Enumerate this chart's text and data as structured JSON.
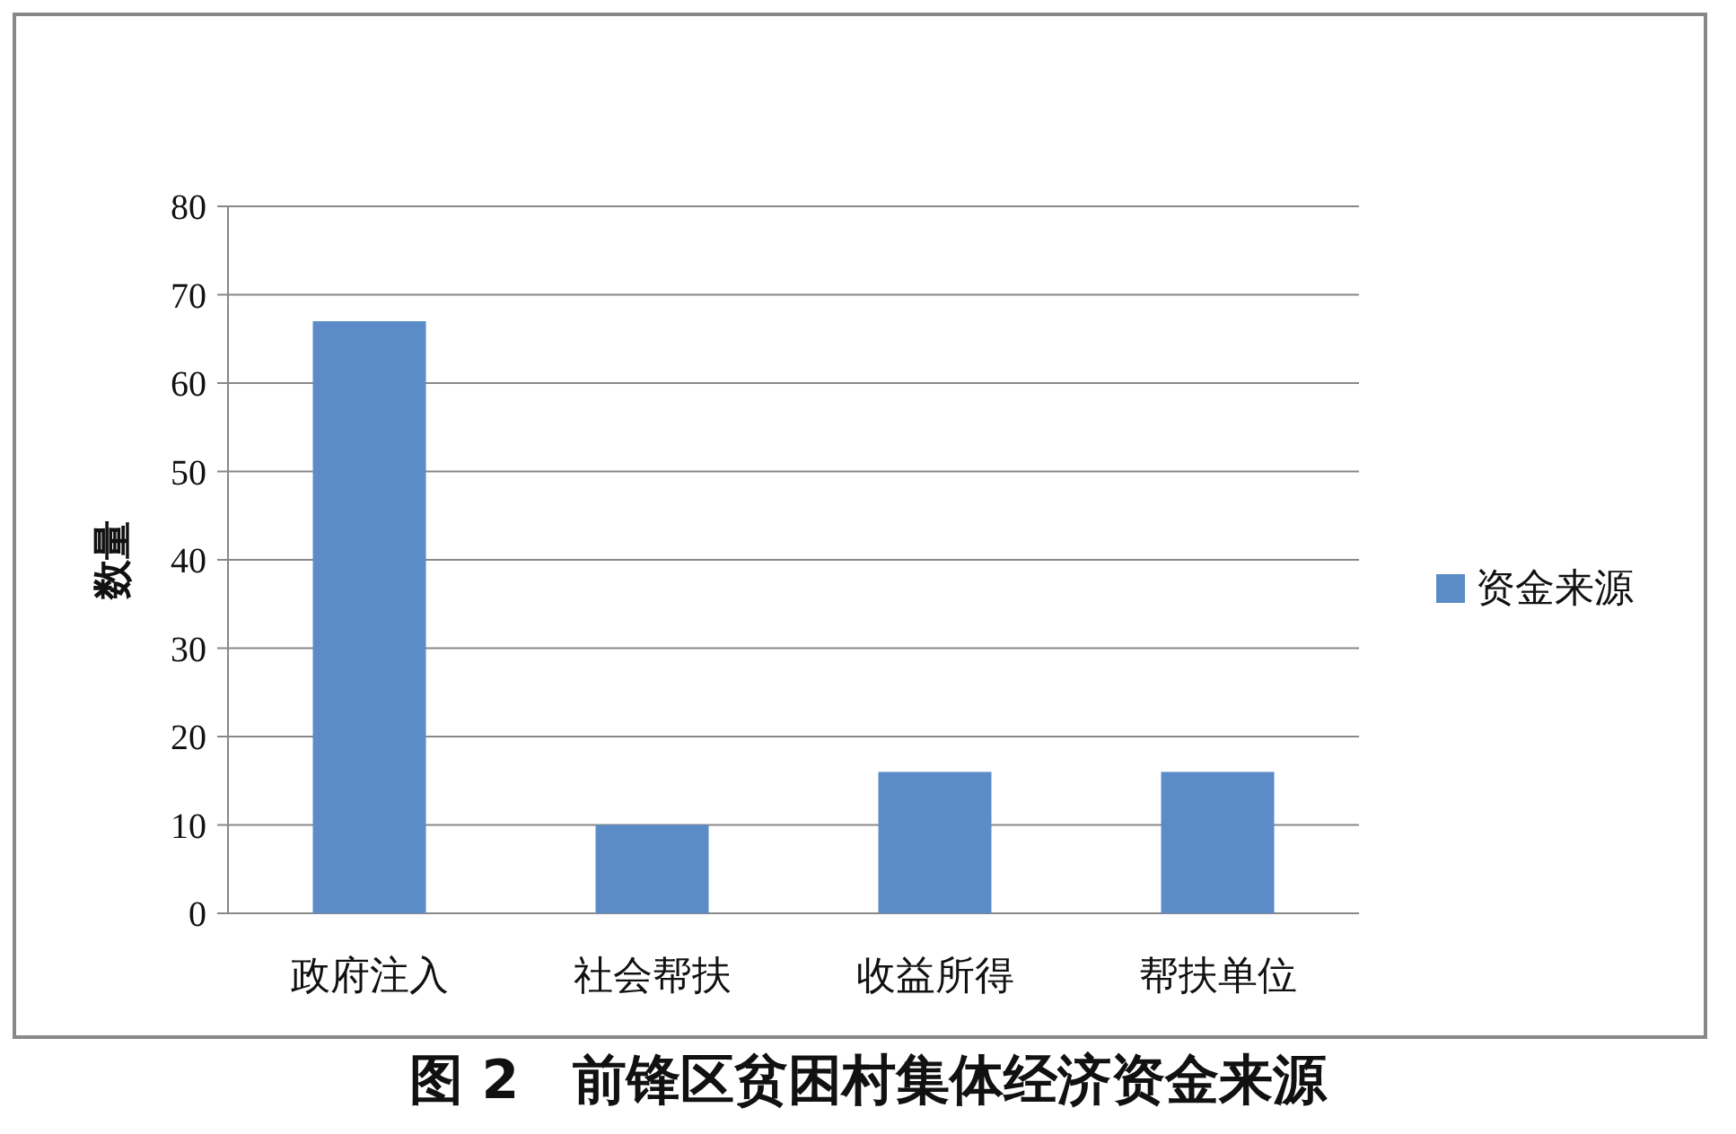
{
  "chart_data": {
    "type": "bar",
    "title": "图 2　前锋区贫困村集体经济资金来源",
    "ylabel": "数量",
    "categories": [
      "政府注入",
      "社会帮扶",
      "收益所得",
      "帮扶单位"
    ],
    "series": [
      {
        "name": "资金来源",
        "color": "#5b8cc8",
        "values": [
          67,
          10,
          16,
          16
        ]
      }
    ],
    "ylim": [
      0,
      80
    ],
    "yticks": [
      0,
      10,
      20,
      30,
      40,
      50,
      60,
      70,
      80
    ],
    "grid": "y",
    "legend": "right"
  }
}
